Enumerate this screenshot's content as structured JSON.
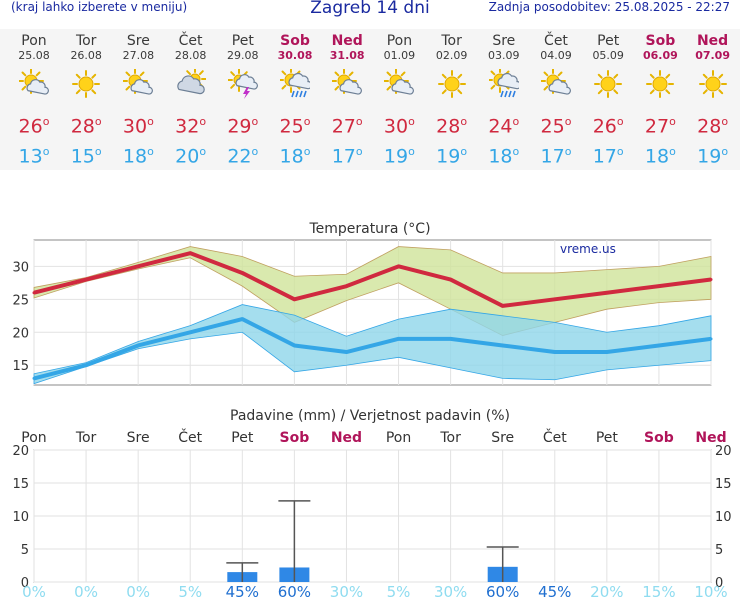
{
  "header": {
    "left": "(kraj lahko izberete v meniju)",
    "title": "Zagreb 14 dni",
    "right": "Zadnja posodobitev: 25.08.2025 - 22:27"
  },
  "days": [
    {
      "name": "Pon",
      "date": "25.08",
      "weekend": false,
      "icon": "sun-cloud-icon",
      "tmax": "26",
      "tmin": "13"
    },
    {
      "name": "Tor",
      "date": "26.08",
      "weekend": false,
      "icon": "sun-icon",
      "tmax": "28",
      "tmin": "15"
    },
    {
      "name": "Sre",
      "date": "27.08",
      "weekend": false,
      "icon": "sun-cloud-icon",
      "tmax": "30",
      "tmin": "18"
    },
    {
      "name": "Čet",
      "date": "28.08",
      "weekend": false,
      "icon": "cloud-sun-icon",
      "tmax": "32",
      "tmin": "20"
    },
    {
      "name": "Pet",
      "date": "29.08",
      "weekend": false,
      "icon": "thunder-icon",
      "tmax": "29",
      "tmin": "22"
    },
    {
      "name": "Sob",
      "date": "30.08",
      "weekend": true,
      "icon": "sun-rain-icon",
      "tmax": "25",
      "tmin": "18"
    },
    {
      "name": "Ned",
      "date": "31.08",
      "weekend": true,
      "icon": "sun-cloud-icon",
      "tmax": "27",
      "tmin": "17"
    },
    {
      "name": "Pon",
      "date": "01.09",
      "weekend": false,
      "icon": "sun-cloud-icon",
      "tmax": "30",
      "tmin": "19"
    },
    {
      "name": "Tor",
      "date": "02.09",
      "weekend": false,
      "icon": "sun-icon",
      "tmax": "28",
      "tmin": "19"
    },
    {
      "name": "Sre",
      "date": "03.09",
      "weekend": false,
      "icon": "sun-rain-icon",
      "tmax": "24",
      "tmin": "18"
    },
    {
      "name": "Čet",
      "date": "04.09",
      "weekend": false,
      "icon": "sun-cloud-icon",
      "tmax": "25",
      "tmin": "17"
    },
    {
      "name": "Pet",
      "date": "05.09",
      "weekend": false,
      "icon": "sun-icon",
      "tmax": "26",
      "tmin": "17"
    },
    {
      "name": "Sob",
      "date": "06.09",
      "weekend": true,
      "icon": "sun-icon",
      "tmax": "27",
      "tmin": "18"
    },
    {
      "name": "Ned",
      "date": "07.09",
      "weekend": true,
      "icon": "sun-icon",
      "tmax": "28",
      "tmin": "19"
    }
  ],
  "colors": {
    "max": "#d0293f",
    "min": "#34a6e6",
    "max_band": "#cfe49a",
    "min_band": "#8fd6ea",
    "bar": "#2f88e6",
    "prob": "#8fdcf0",
    "weekend": "#b0155a"
  },
  "chart_data": [
    {
      "type": "line",
      "title": "Temperatura (°C)",
      "watermark": "vreme.us",
      "categories": [
        "Pon",
        "Tor",
        "Sre",
        "Čet",
        "Pet",
        "Sob",
        "Ned",
        "Pon",
        "Tor",
        "Sre",
        "Čet",
        "Pet",
        "Sob",
        "Ned"
      ],
      "ylim": [
        12,
        34
      ],
      "yticks": [
        15,
        20,
        25,
        30
      ],
      "series": [
        {
          "role": "max",
          "values": [
            26,
            28,
            30,
            32,
            29,
            25,
            27,
            30,
            28,
            24,
            25,
            26,
            27,
            28
          ],
          "band_high": [
            26.8,
            28.3,
            30.6,
            33,
            31.5,
            28.5,
            28.8,
            33,
            32.5,
            29,
            29,
            29.5,
            30,
            31.5
          ],
          "band_low": [
            25.2,
            27.7,
            29.6,
            31.3,
            27,
            21.5,
            24.8,
            27.5,
            23.5,
            19.5,
            21.5,
            23.5,
            24.5,
            25
          ]
        },
        {
          "role": "min",
          "values": [
            13,
            15,
            18,
            20,
            22,
            18,
            17,
            19,
            19,
            18,
            17,
            17,
            18,
            19
          ],
          "band_high": [
            13.7,
            15.4,
            18.6,
            21,
            24.2,
            22.6,
            19.4,
            22,
            23.5,
            22.5,
            21.5,
            20,
            21,
            22.5
          ],
          "band_low": [
            12.2,
            14.8,
            17.5,
            19,
            20,
            14,
            15,
            16.2,
            14.6,
            13,
            12.8,
            14.3,
            15,
            15.7
          ]
        }
      ]
    },
    {
      "type": "bar",
      "title": "Padavine (mm) / Verjetnost padavin (%)",
      "categories": [
        "Pon",
        "Tor",
        "Sre",
        "Čet",
        "Pet",
        "Sob",
        "Ned",
        "Pon",
        "Tor",
        "Sre",
        "Čet",
        "Pet",
        "Sob",
        "Ned"
      ],
      "weekend": [
        false,
        false,
        false,
        false,
        false,
        true,
        true,
        false,
        false,
        false,
        false,
        false,
        true,
        true
      ],
      "ylim": [
        0,
        20
      ],
      "yticks": [
        0,
        5,
        10,
        15,
        20
      ],
      "values": [
        0,
        0,
        0,
        0,
        1.5,
        2.2,
        0,
        0,
        0,
        2.3,
        0,
        0,
        0,
        0
      ],
      "error_high": [
        0,
        0,
        0,
        0,
        2.9,
        12.3,
        0,
        0,
        0,
        5.3,
        0,
        0,
        0,
        0
      ],
      "probability": [
        "0%",
        "0%",
        "0%",
        "5%",
        "45%",
        "60%",
        "30%",
        "5%",
        "30%",
        "60%",
        "45%",
        "20%",
        "15%",
        "10%"
      ]
    }
  ]
}
